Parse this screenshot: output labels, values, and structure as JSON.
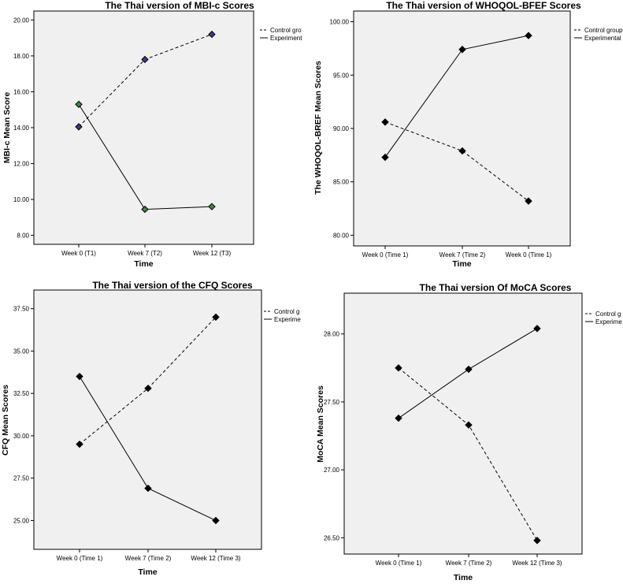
{
  "chart_data": [
    {
      "type": "line",
      "title": "The Thai version of MBI-c Scores",
      "xlabel": "Time",
      "ylabel": "MBI-c Mean Score",
      "categories": [
        "Week 0 (T1)",
        "Week 7 (T2)",
        "Week 12 (T3)"
      ],
      "ylim": [
        7.5,
        20.5
      ],
      "yticks": [
        "8.00",
        "10.00",
        "12.00",
        "14.00",
        "16.00",
        "18.00",
        "20.00"
      ],
      "ytick_values": [
        8,
        10,
        12,
        14,
        16,
        18,
        20
      ],
      "legend_position": "right",
      "series": [
        {
          "name": "Control group",
          "legend_label": "Control gro",
          "style": "dashed",
          "marker_color": "#3a3a9a",
          "values": [
            14.05,
            17.8,
            19.2
          ]
        },
        {
          "name": "Experimental",
          "legend_label": "Experiment",
          "style": "solid",
          "marker_color": "#3a8a3a",
          "values": [
            15.3,
            9.45,
            9.6
          ]
        }
      ]
    },
    {
      "type": "line",
      "title": "The Thai version of WHOQOL-BFEF Scores",
      "xlabel": "Time",
      "ylabel": "The WHOQOL-BREF Mean Scores",
      "categories": [
        "Week 0 (Time 1)",
        "Week 7 (Time 2)",
        "Week 0 (Time 1)"
      ],
      "ylim": [
        79.0,
        101.0
      ],
      "yticks": [
        "80.00",
        "85.00",
        "90.00",
        "95.00",
        "100.00"
      ],
      "ytick_values": [
        80,
        85,
        90,
        95,
        100
      ],
      "legend_position": "right",
      "series": [
        {
          "name": "Control group",
          "legend_label": "Control group",
          "style": "dashed",
          "marker_color": "#000000",
          "values": [
            90.6,
            87.9,
            83.2
          ]
        },
        {
          "name": "Experimental",
          "legend_label": "Experimental",
          "style": "solid",
          "marker_color": "#000000",
          "values": [
            87.3,
            97.4,
            98.7
          ]
        }
      ]
    },
    {
      "type": "line",
      "title": "The Thai version of the CFQ Scores",
      "xlabel": "Time",
      "ylabel": "CFQ Mean Scores",
      "categories": [
        "Week 0 (Time 1)",
        "Week 7 (Time 2)",
        "Week 12 (Time 3)"
      ],
      "ylim": [
        23.3,
        38.6
      ],
      "yticks": [
        "25.00",
        "27.50",
        "30.00",
        "32.50",
        "35.00",
        "37.50"
      ],
      "ytick_values": [
        25,
        27.5,
        30,
        32.5,
        35,
        37.5
      ],
      "legend_position": "right",
      "series": [
        {
          "name": "Control group",
          "legend_label": "Control g",
          "style": "dashed",
          "marker_color": "#000000",
          "values": [
            29.5,
            32.8,
            37.0
          ]
        },
        {
          "name": "Experimental",
          "legend_label": "Experime",
          "style": "solid",
          "marker_color": "#000000",
          "values": [
            33.5,
            26.9,
            25.0
          ]
        }
      ]
    },
    {
      "type": "line",
      "title": "The Thai version Of MoCA Scores",
      "xlabel": "Time",
      "ylabel": "MoCA Mean Scores",
      "categories": [
        "Week 0 (Time 1)",
        "Week 7 (Time 2)",
        "Week 12 (Time 3)"
      ],
      "ylim": [
        26.38,
        28.3
      ],
      "yticks": [
        "26.50",
        "27.00",
        "27.50",
        "28.00"
      ],
      "ytick_values": [
        26.5,
        27.0,
        27.5,
        28.0
      ],
      "legend_position": "right",
      "series": [
        {
          "name": "Control group",
          "legend_label": "Control g",
          "style": "dashed",
          "marker_color": "#000000",
          "values": [
            27.75,
            27.33,
            26.48
          ]
        },
        {
          "name": "Experimental",
          "legend_label": "Experime",
          "style": "solid",
          "marker_color": "#000000",
          "values": [
            27.38,
            27.74,
            28.04
          ]
        }
      ]
    }
  ]
}
